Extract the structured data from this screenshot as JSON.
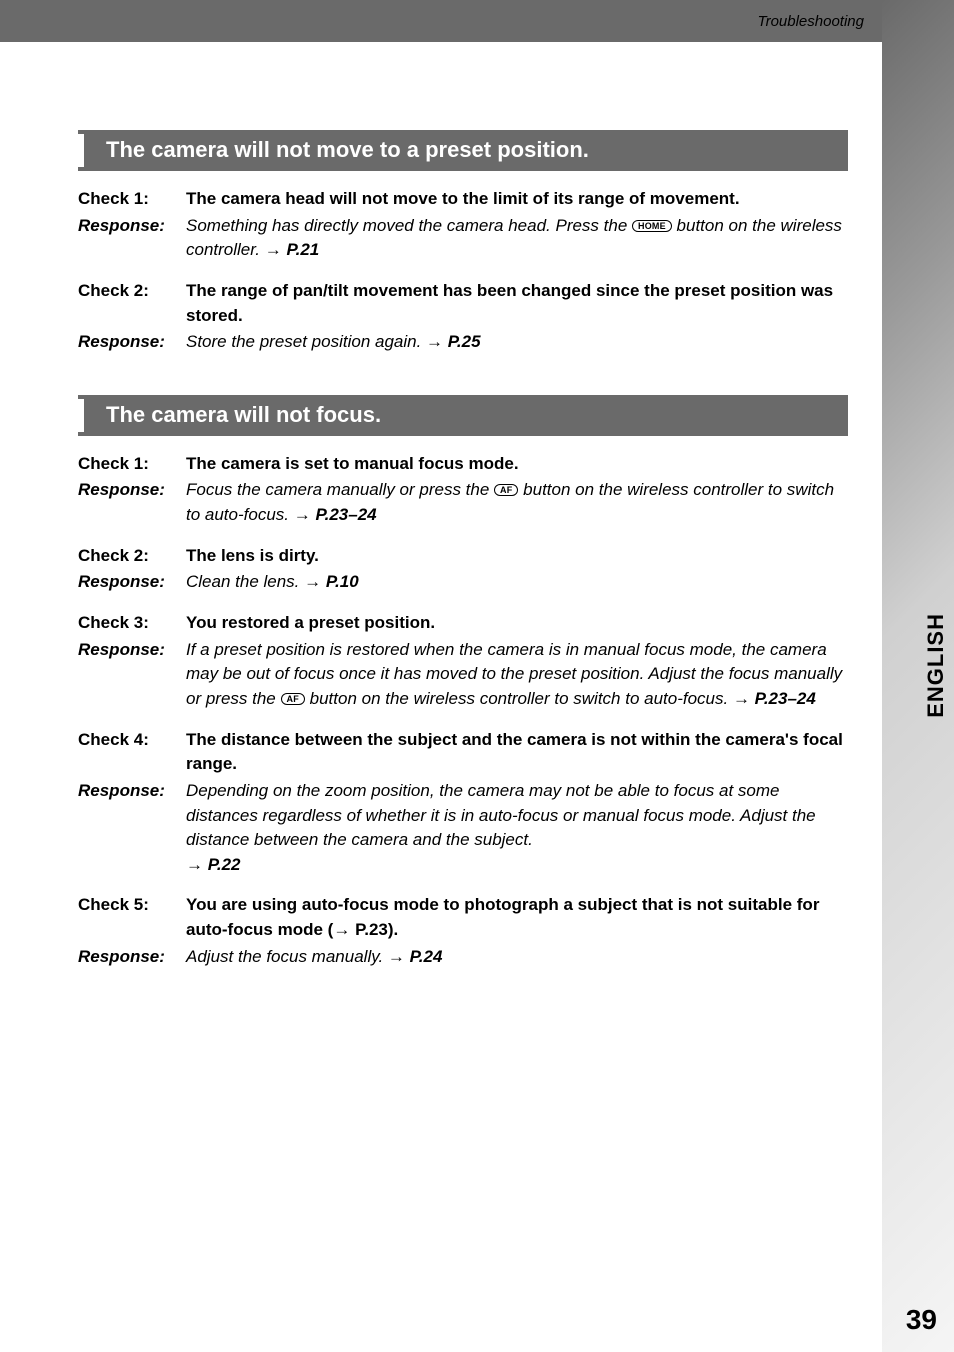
{
  "header": {
    "category": "Troubleshooting"
  },
  "sideTab": {
    "language": "ENGLISH"
  },
  "pageNumber": "39",
  "sections": [
    {
      "title": "The camera will not move to a preset position.",
      "items": [
        {
          "checkLabel": "Check 1:",
          "checkText": "The camera head will not move to the limit of its range of movement.",
          "responseLabel": "Response:",
          "responsePre": "Something has directly moved the camera head. Press the ",
          "icon": "HOME",
          "responsePost": " button on the wireless controller. ",
          "arrow": "→",
          "pref": " P.21"
        },
        {
          "checkLabel": "Check 2:",
          "checkText": "The range of pan/tilt movement has been changed since the preset position was stored.",
          "responseLabel": "Response:",
          "responsePre": "Store the preset position again. ",
          "arrow": "→",
          "pref": " P.25"
        }
      ]
    },
    {
      "title": "The camera will not focus.",
      "items": [
        {
          "checkLabel": "Check 1:",
          "checkText": "The camera is set to manual focus mode.",
          "responseLabel": "Response:",
          "responsePre": "Focus the camera manually or press the ",
          "icon": "AF",
          "responsePost": " button on the wireless controller to switch to auto-focus. ",
          "arrow": "→",
          "pref": " P.23–24"
        },
        {
          "checkLabel": "Check 2:",
          "checkText": "The lens is dirty.",
          "responseLabel": "Response:",
          "responsePre": "Clean the lens. ",
          "arrow": "→",
          "pref": " P.10"
        },
        {
          "checkLabel": "Check 3:",
          "checkText": "You restored a preset position.",
          "responseLabel": "Response:",
          "responsePre": "If a preset position is restored when the camera is in manual focus mode, the camera may be out of focus once it has moved to the preset position. Adjust the focus manually or press the ",
          "icon": "AF",
          "responsePost": " button on the wireless controller to switch to auto-focus. ",
          "arrow": "→",
          "pref": " P.23–24"
        },
        {
          "checkLabel": "Check 4:",
          "checkText": "The distance between the subject and the camera is not within the camera's focal range.",
          "responseLabel": "Response:",
          "responsePre": "Depending on the zoom position, the camera may not be able to focus at some distances regardless of whether it is in auto-focus or manual focus mode. Adjust the distance between the camera and the subject. ",
          "arrowOnNewLine": true,
          "arrow": "→",
          "pref": " P.22"
        },
        {
          "checkLabel": "Check 5:",
          "checkTextPre": "You are using auto-focus mode to photograph a subject that is not suitable for auto-focus mode (",
          "checkArrow": "→",
          "checkTextPost": " P.23).",
          "responseLabel": "Response:",
          "responsePre": "Adjust the focus manually. ",
          "arrow": "→",
          "pref": " P.24"
        }
      ]
    }
  ]
}
